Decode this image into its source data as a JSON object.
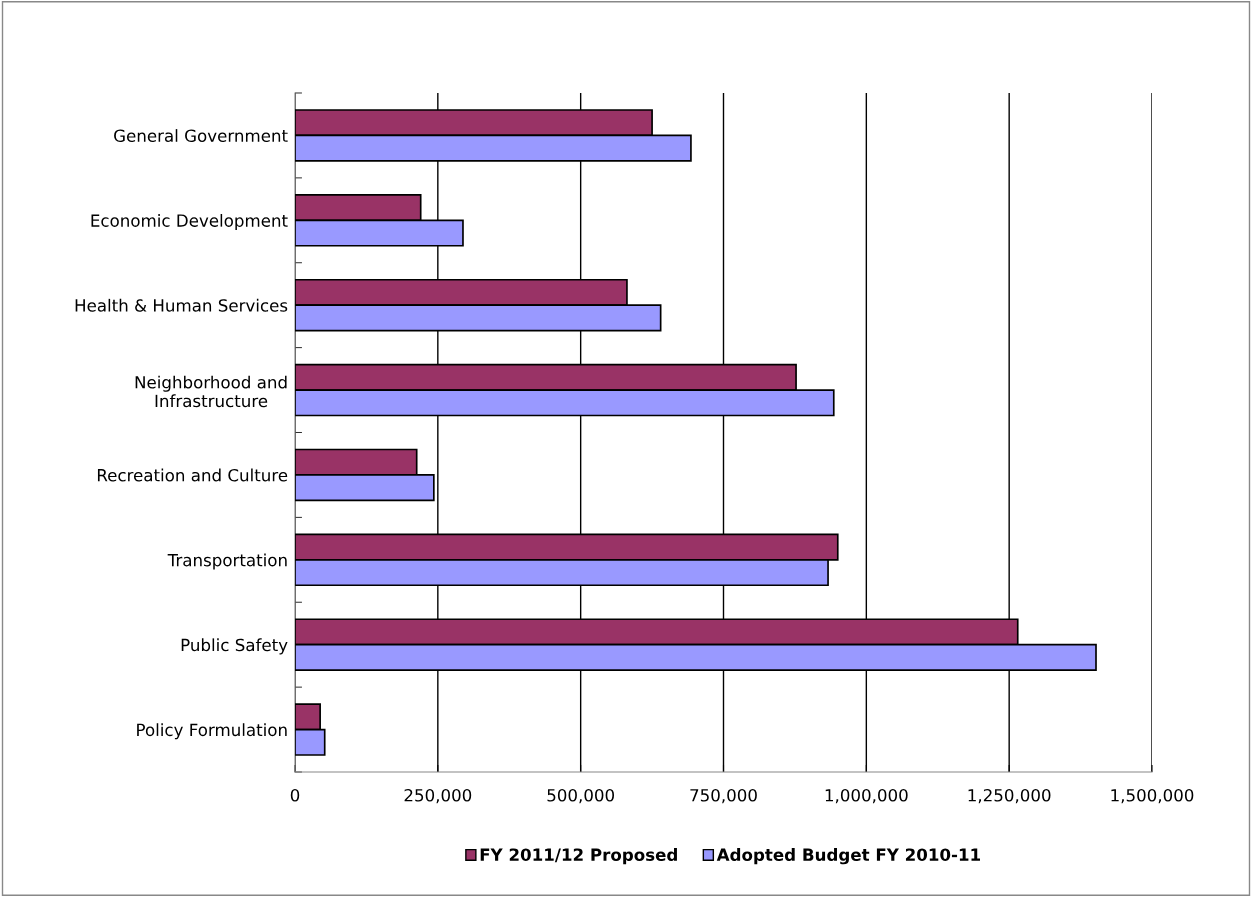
{
  "chart_data": {
    "type": "bar",
    "orientation": "horizontal",
    "categories": [
      "General Government",
      "Economic Development",
      "Health & Human Services",
      "Neighborhood and\nInfrastructure",
      "Recreation and Culture",
      "Transportation",
      "Public Safety",
      "Policy Formulation"
    ],
    "series": [
      {
        "name": "FY 2011/12 Proposed",
        "color": "#993366",
        "values": [
          625000,
          220000,
          581000,
          877000,
          213000,
          950000,
          1265000,
          44000
        ]
      },
      {
        "name": "Adopted Budget FY 2010-11",
        "color": "#9999ff",
        "values": [
          693000,
          294000,
          640000,
          943000,
          243000,
          933000,
          1402000,
          52000
        ]
      }
    ],
    "xlim": [
      0,
      1500000
    ],
    "xticks": [
      {
        "value": 0,
        "label": "0"
      },
      {
        "value": 250000,
        "label": "250,000"
      },
      {
        "value": 500000,
        "label": "500,000"
      },
      {
        "value": 750000,
        "label": "750,000"
      },
      {
        "value": 1000000,
        "label": "1,000,000"
      },
      {
        "value": 1250000,
        "label": "1,250,000"
      },
      {
        "value": 1500000,
        "label": "1,500,000"
      }
    ],
    "grid": "x",
    "legend": "bottom"
  }
}
